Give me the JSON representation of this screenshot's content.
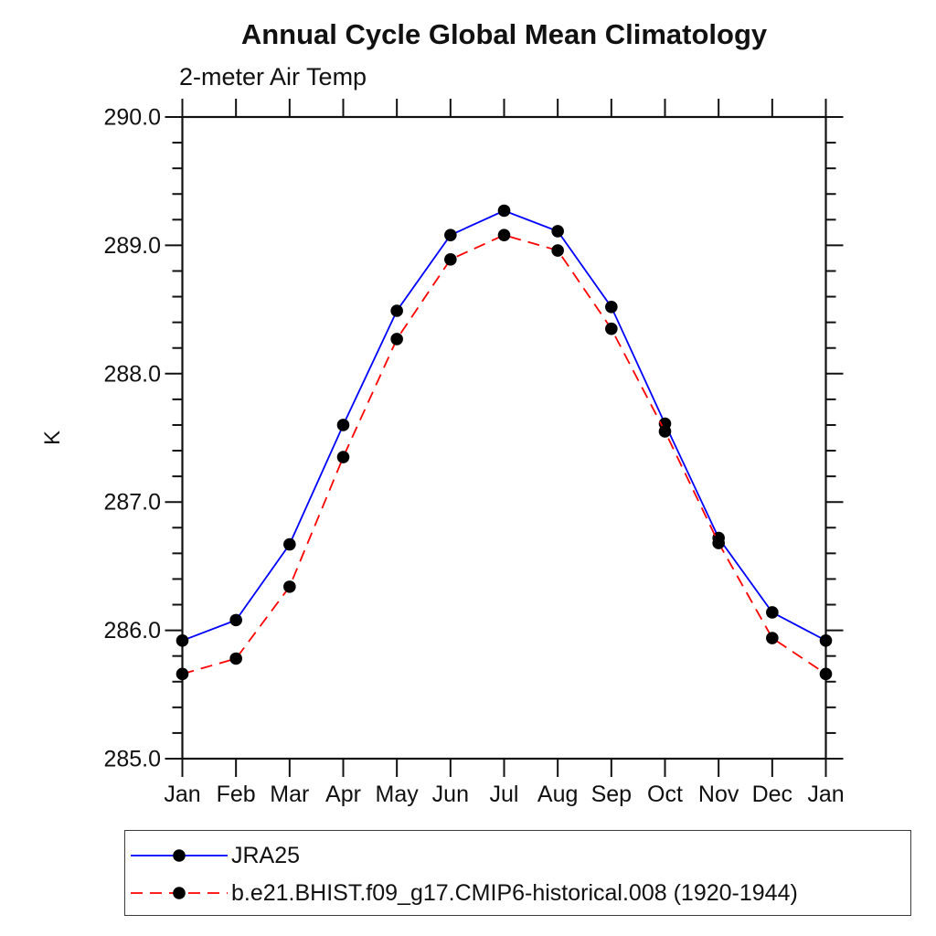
{
  "chart_data": {
    "type": "line",
    "title": "Annual Cycle Global Mean Climatology",
    "subtitle": "2-meter Air Temp",
    "ylabel": "K",
    "xlabel": "",
    "categories": [
      "Jan",
      "Feb",
      "Mar",
      "Apr",
      "May",
      "Jun",
      "Jul",
      "Aug",
      "Sep",
      "Oct",
      "Nov",
      "Dec",
      "Jan"
    ],
    "ylim": [
      285.0,
      290.0
    ],
    "y_tick_labels": [
      "285.0",
      "286.0",
      "287.0",
      "288.0",
      "289.0",
      "290.0"
    ],
    "y_minor_tick_interval": 0.2,
    "grid": "off",
    "legend_position": "bottom-left",
    "axis_color": "#111111",
    "marker_color": "#000000",
    "series": [
      {
        "name": "JRA25",
        "color": "#0000ff",
        "line_style": "solid",
        "marker": "filled-circle",
        "values": [
          285.92,
          286.08,
          286.67,
          287.6,
          288.49,
          289.08,
          289.27,
          289.11,
          288.52,
          287.61,
          286.72,
          286.14,
          285.92
        ]
      },
      {
        "name": "b.e21.BHIST.f09_g17.CMIP6-historical.008 (1920-1944)",
        "color": "#ff0000",
        "line_style": "dashed",
        "marker": "filled-circle",
        "values": [
          285.66,
          285.78,
          286.34,
          287.35,
          288.27,
          288.89,
          289.08,
          288.96,
          288.35,
          287.55,
          286.68,
          285.94,
          285.66
        ]
      }
    ]
  }
}
